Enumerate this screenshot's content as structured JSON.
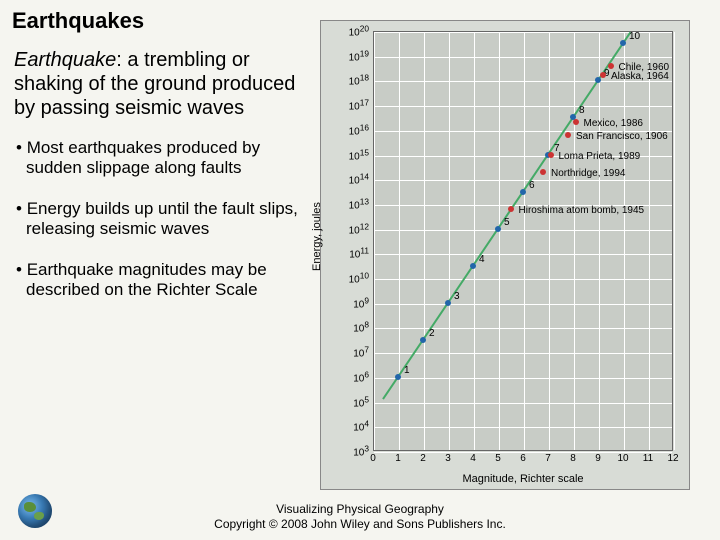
{
  "title": "Earthquakes",
  "definition_term": "Earthquake",
  "definition_text": ": a trembling or shaking of the ground produced by passing seismic waves",
  "bullets": [
    "Most earthquakes produced by sudden slippage along faults",
    "Energy builds up until the fault slips, releasing seismic waves",
    "Earthquake magnitudes may be described on the Richter Scale"
  ],
  "footer_line1": "Visualizing Physical Geography",
  "footer_line2": "Copyright © 2008 John Wiley and Sons Publishers Inc.",
  "chart": {
    "type": "line",
    "xaxis_title": "Magnitude, Richter scale",
    "yaxis_title": "Energy, joules",
    "xlim": [
      0,
      12
    ],
    "ylim_exp": [
      3,
      20
    ],
    "xtick_step": 1,
    "ytick_exp_step": 1,
    "background_color": "#c8ccc6",
    "outer_background": "#d8dcd6",
    "grid_color": "#ffffff",
    "line_color": "#44aa66",
    "line_width": 2,
    "blue_points": [
      {
        "x": 1,
        "y_exp": 6,
        "label": "1"
      },
      {
        "x": 2,
        "y_exp": 7.5,
        "label": "2"
      },
      {
        "x": 3,
        "y_exp": 9,
        "label": "3"
      },
      {
        "x": 4,
        "y_exp": 10.5,
        "label": "4"
      },
      {
        "x": 5,
        "y_exp": 12,
        "label": "5"
      },
      {
        "x": 6,
        "y_exp": 13.5,
        "label": "6"
      },
      {
        "x": 7,
        "y_exp": 15,
        "label": "7"
      },
      {
        "x": 8,
        "y_exp": 16.5,
        "label": "8"
      },
      {
        "x": 9,
        "y_exp": 18,
        "label": "9"
      },
      {
        "x": 10,
        "y_exp": 19.5,
        "label": "10"
      }
    ],
    "red_points": [
      {
        "x": 9.5,
        "y_exp": 18.6,
        "label": "Chile, 1960"
      },
      {
        "x": 9.2,
        "y_exp": 18.2,
        "label": "Alaska, 1964"
      },
      {
        "x": 8.1,
        "y_exp": 16.3,
        "label": "Mexico, 1986"
      },
      {
        "x": 7.8,
        "y_exp": 15.8,
        "label": "San Francisco, 1906"
      },
      {
        "x": 7.1,
        "y_exp": 15.0,
        "label": "Loma Prieta, 1989"
      },
      {
        "x": 6.8,
        "y_exp": 14.3,
        "label": "Northridge, 1994"
      },
      {
        "x": 5.5,
        "y_exp": 12.8,
        "label": "Hiroshima atom bomb, 1945"
      }
    ],
    "annotation_fontsize": 10,
    "tick_fontsize": 10,
    "axis_title_fontsize": 11
  }
}
